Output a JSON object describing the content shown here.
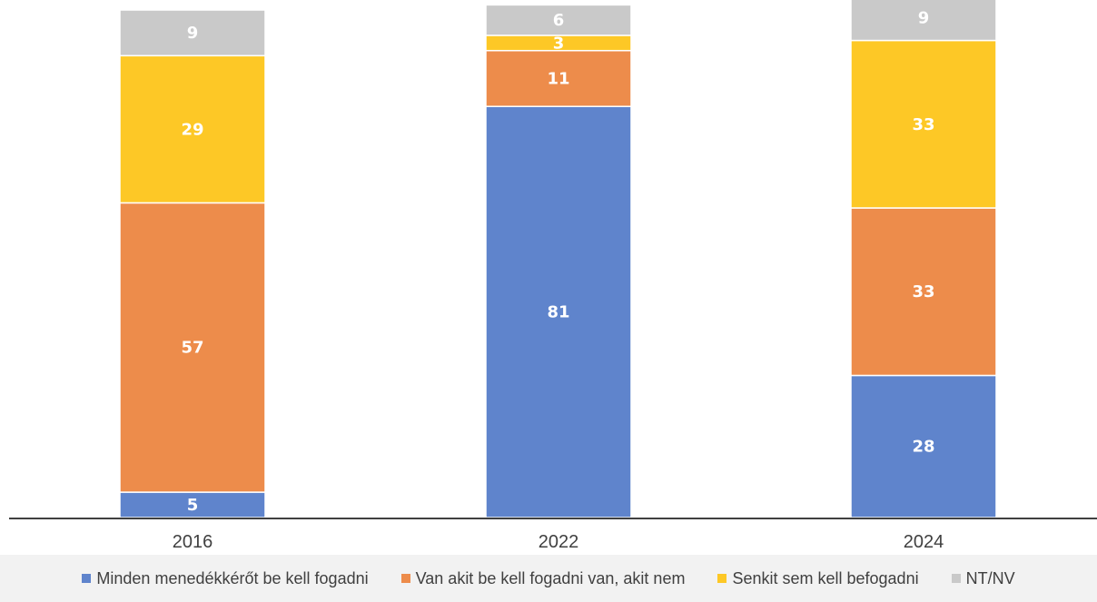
{
  "chart_data": {
    "type": "bar",
    "stacked": true,
    "categories": [
      "2016",
      "2022",
      "2024"
    ],
    "series": [
      {
        "name": "Minden menedékkérőt be kell fogadni",
        "values": [
          5,
          81,
          28
        ],
        "color": "#5f84cc"
      },
      {
        "name": "Van akit be kell fogadni van, akit nem",
        "values": [
          57,
          11,
          33
        ],
        "color": "#ed8c4b"
      },
      {
        "name": "Senkit sem kell befogadni",
        "values": [
          29,
          3,
          33
        ],
        "color": "#fdc826"
      },
      {
        "name": "NT/NV",
        "values": [
          9,
          6,
          9
        ],
        "color": "#c9c9c9"
      }
    ],
    "ylim": [
      0,
      100
    ],
    "grid": false,
    "legend_position": "bottom"
  }
}
